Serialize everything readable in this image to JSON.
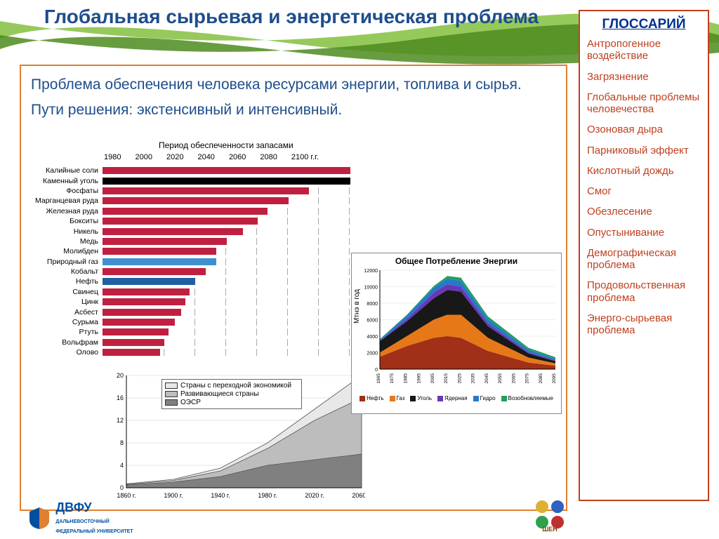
{
  "page_title": "Глобальная сырьевая и энергетическая проблема",
  "intro_line1": "Проблема обеспечения человека ресурсами энергии, топлива и сырья.",
  "intro_line2": "Пути решения: экстенсивный и интенсивный.",
  "glossary": {
    "title": "ГЛОССАРИЙ",
    "items": [
      "Антропогенное воздействие",
      "Загрязнение",
      "Глобальные проблемы человечества",
      "Озоновая дыра",
      "Парниковый эффект",
      "Кислотный дождь",
      "Смог",
      "Обезлесение",
      "Опустынивание",
      "Демографическая проблема",
      "Продовольственная проблема",
      "Энерго-сырьевая проблема"
    ]
  },
  "bar_chart": {
    "title": "Период обеспеченности запасами",
    "x_start": 1980,
    "x_end": 2100,
    "x_step": 20,
    "x_labels": [
      "1980",
      "2000",
      "2020",
      "2040",
      "2060",
      "2080",
      "2100 г.г."
    ],
    "colors": {
      "default": "#c02040",
      "coal": "#000000",
      "gas": "#4090d0",
      "oil": "#2060a0"
    },
    "rows": [
      {
        "label": "Калийные соли",
        "end": 2100,
        "color": "default"
      },
      {
        "label": "Каменный уголь",
        "end": 2100,
        "color": "coal"
      },
      {
        "label": "Фосфаты",
        "end": 2080,
        "color": "default"
      },
      {
        "label": "Марганцевая руда",
        "end": 2070,
        "color": "default"
      },
      {
        "label": "Железная руда",
        "end": 2060,
        "color": "default"
      },
      {
        "label": "Бокситы",
        "end": 2055,
        "color": "default"
      },
      {
        "label": "Никель",
        "end": 2048,
        "color": "default"
      },
      {
        "label": "Медь",
        "end": 2040,
        "color": "default"
      },
      {
        "label": "Молибден",
        "end": 2035,
        "color": "default"
      },
      {
        "label": "Природный газ",
        "end": 2035,
        "color": "gas"
      },
      {
        "label": "Кобальт",
        "end": 2030,
        "color": "default"
      },
      {
        "label": "Нефть",
        "end": 2025,
        "color": "oil"
      },
      {
        "label": "Свинец",
        "end": 2022,
        "color": "default"
      },
      {
        "label": "Цинк",
        "end": 2020,
        "color": "default"
      },
      {
        "label": "Асбест",
        "end": 2018,
        "color": "default"
      },
      {
        "label": "Сурьма",
        "end": 2015,
        "color": "default"
      },
      {
        "label": "Ртуть",
        "end": 2012,
        "color": "default"
      },
      {
        "label": "Вольфрам",
        "end": 2010,
        "color": "default"
      },
      {
        "label": "Олово",
        "end": 2008,
        "color": "default"
      }
    ]
  },
  "area_chart": {
    "y_max": 20,
    "y_step": 4,
    "x_labels": [
      "1860 г.",
      "1900 г.",
      "1940 г.",
      "1980 г.",
      "2020 г.",
      "2060 г."
    ],
    "x_years": [
      1860,
      1900,
      1940,
      1980,
      2020,
      2060
    ],
    "legend": [
      {
        "label": "Страны с переходной экономикой",
        "color": "#e8e8e8"
      },
      {
        "label": "Развивающиеся страны",
        "color": "#bdbdbd"
      },
      {
        "label": "ОЭСР",
        "color": "#808080"
      }
    ],
    "points": {
      "x": [
        1860,
        1900,
        1940,
        1980,
        2020,
        2060
      ],
      "oecd": [
        0.5,
        1,
        2,
        4,
        5,
        6
      ],
      "developing": [
        0.6,
        1.3,
        3,
        7,
        12,
        16
      ],
      "transition": [
        0.7,
        1.5,
        3.5,
        8,
        14,
        20
      ]
    }
  },
  "stack_chart": {
    "title": "Общее Потребление Энергии",
    "ylabel": "Мтнэ в год",
    "y_max": 12000,
    "y_step": 2000,
    "x_years": [
      1965,
      1975,
      1985,
      1995,
      2005,
      2015,
      2025,
      2035,
      2045,
      2055,
      2065,
      2075,
      2085,
      2095
    ],
    "legend": [
      {
        "label": "Нефть",
        "color": "#a03018"
      },
      {
        "label": "Газ",
        "color": "#e67818"
      },
      {
        "label": "Уголь",
        "color": "#181818"
      },
      {
        "label": "Ядерная",
        "color": "#6838b8"
      },
      {
        "label": "Гидро",
        "color": "#2878c8"
      },
      {
        "label": "Возобновляемые",
        "color": "#20a060"
      }
    ],
    "series": {
      "x": [
        1965,
        1985,
        2005,
        2015,
        2025,
        2045,
        2075,
        2095
      ],
      "oil": [
        1500,
        2800,
        3800,
        4000,
        3800,
        2200,
        800,
        400
      ],
      "gas": [
        500,
        1200,
        2200,
        2600,
        2800,
        1600,
        600,
        300
      ],
      "coal": [
        1400,
        1800,
        2600,
        3000,
        2800,
        1400,
        500,
        250
      ],
      "nuclear": [
        0,
        300,
        700,
        700,
        600,
        350,
        150,
        100
      ],
      "hydro": [
        200,
        400,
        600,
        700,
        700,
        500,
        300,
        200
      ],
      "renew": [
        50,
        100,
        200,
        300,
        400,
        350,
        250,
        200
      ]
    }
  },
  "logo_left": {
    "abbr": "ДВФУ",
    "line1": "ДАЛЬНЕВОСТОЧНЫЙ",
    "line2": "ФЕДЕРАЛЬНЫЙ УНИВЕРСИТЕТ"
  },
  "logo_right_label": "ШЕН"
}
